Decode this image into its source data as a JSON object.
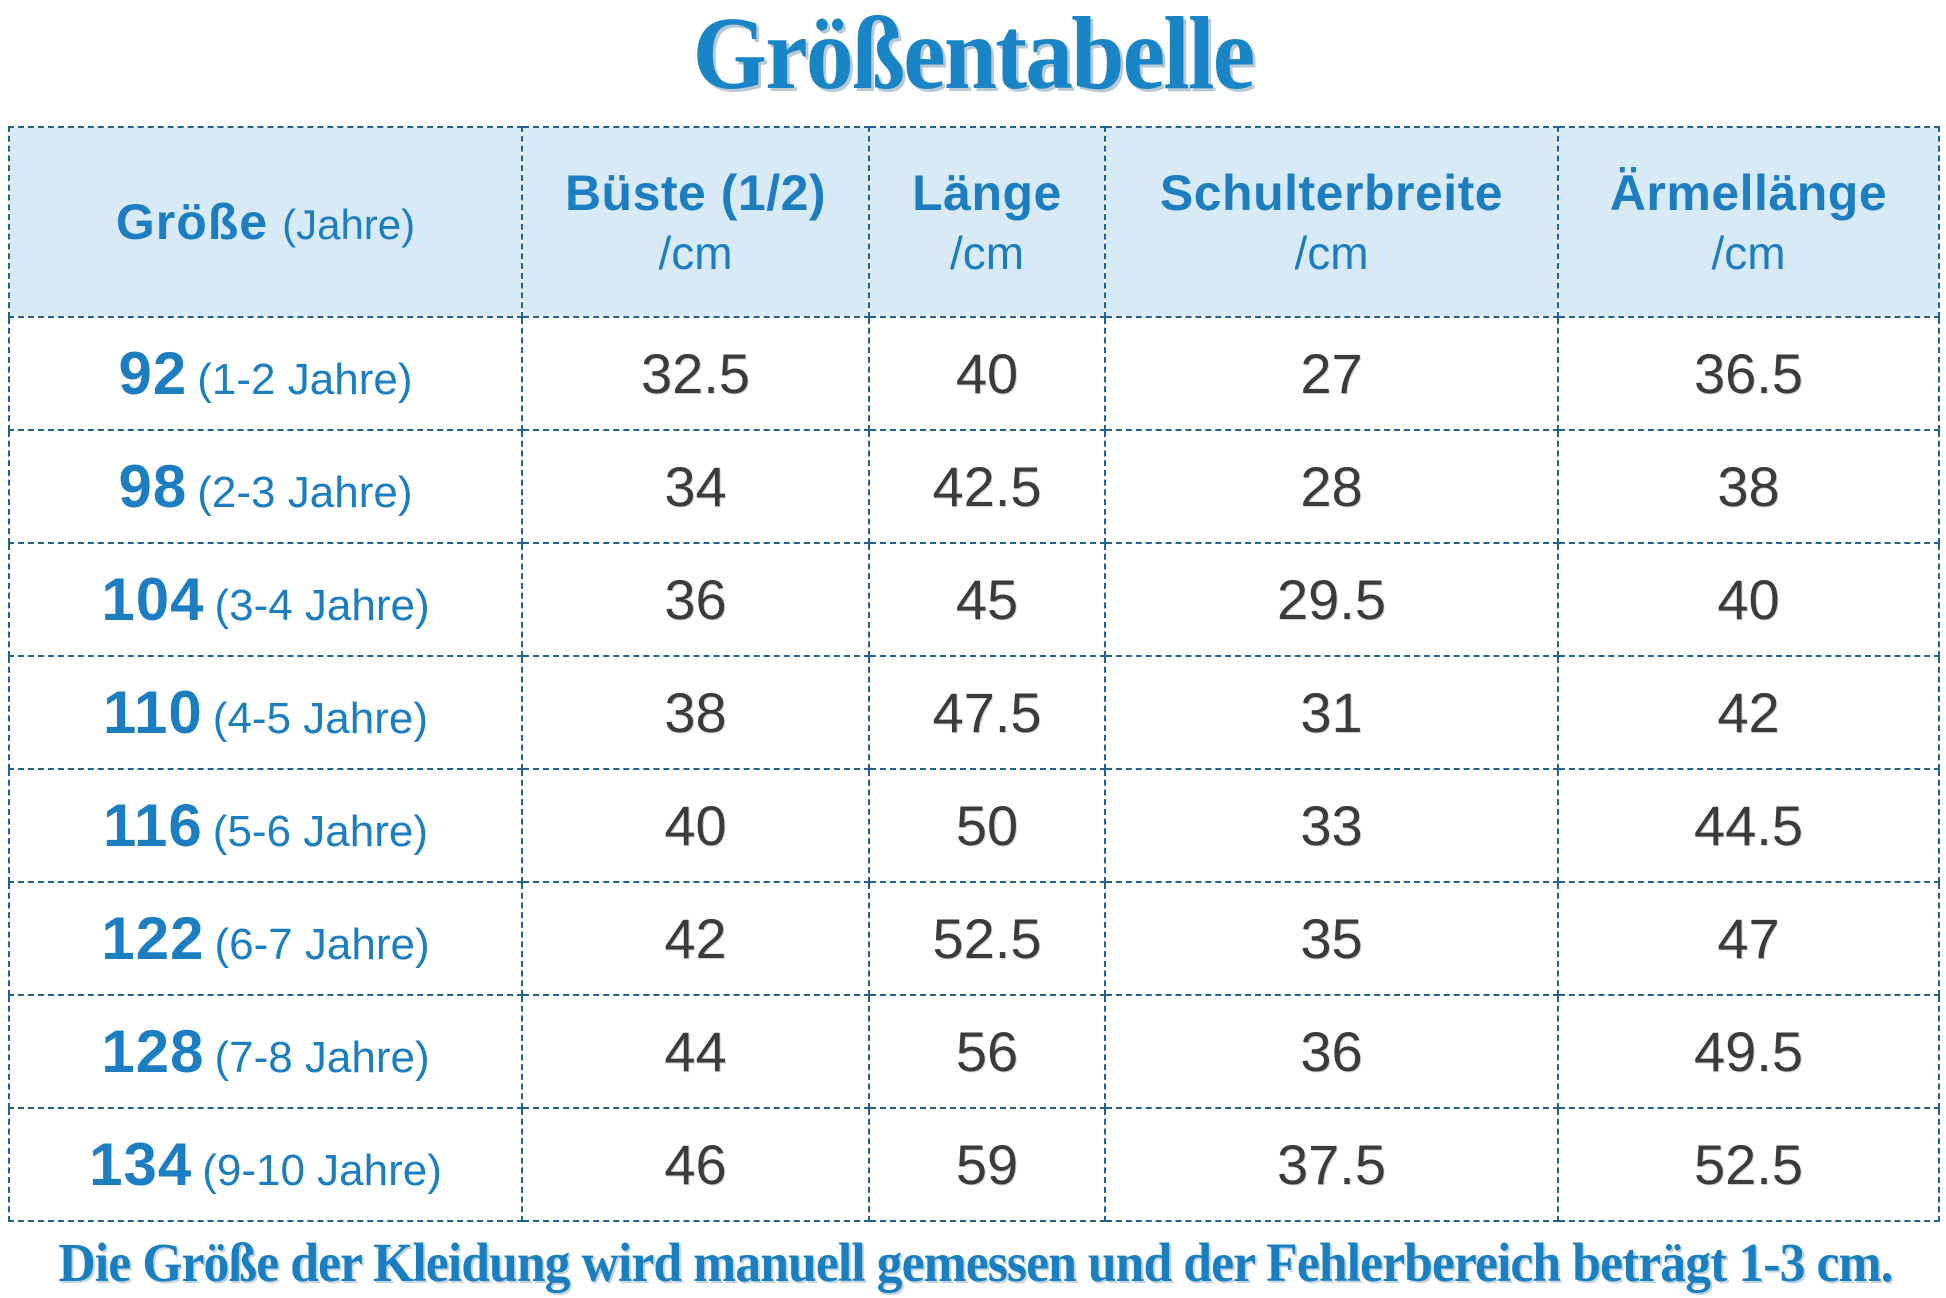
{
  "title": "Größentabelle",
  "footer_note": "Die Größe der Kleidung wird manuell gemessen und der Fehlerbereich beträgt 1-3 cm.",
  "colors": {
    "accent_blue": "#1a85c6",
    "header_bg": "#d9eaf7",
    "border_blue": "#23618e",
    "value_text": "#3b3b3b"
  },
  "table": {
    "size_header": {
      "label": "Größe",
      "sub_label": "(Jahre)"
    },
    "measure_headers": [
      {
        "label": "Büste (1/2)",
        "unit": "/cm"
      },
      {
        "label": "Länge",
        "unit": "/cm"
      },
      {
        "label": "Schulterbreite",
        "unit": "/cm"
      },
      {
        "label": "Ärmellänge",
        "unit": "/cm"
      }
    ],
    "rows": [
      {
        "size": "92",
        "age": "(1-2 Jahre)",
        "values": [
          "32.5",
          "40",
          "27",
          "36.5"
        ]
      },
      {
        "size": "98",
        "age": "(2-3 Jahre)",
        "values": [
          "34",
          "42.5",
          "28",
          "38"
        ]
      },
      {
        "size": "104",
        "age": "(3-4 Jahre)",
        "values": [
          "36",
          "45",
          "29.5",
          "40"
        ]
      },
      {
        "size": "110",
        "age": "(4-5 Jahre)",
        "values": [
          "38",
          "47.5",
          "31",
          "42"
        ]
      },
      {
        "size": "116",
        "age": "(5-6 Jahre)",
        "values": [
          "40",
          "50",
          "33",
          "44.5"
        ]
      },
      {
        "size": "122",
        "age": "(6-7 Jahre)",
        "values": [
          "42",
          "52.5",
          "35",
          "47"
        ]
      },
      {
        "size": "128",
        "age": "(7-8 Jahre)",
        "values": [
          "44",
          "56",
          "36",
          "49.5"
        ]
      },
      {
        "size": "134",
        "age": "(9-10 Jahre)",
        "values": [
          "46",
          "59",
          "37.5",
          "52.5"
        ]
      }
    ]
  },
  "chart_data": {
    "type": "table",
    "title": "Größentabelle",
    "columns": [
      "Größe (Jahre)",
      "Büste (1/2) /cm",
      "Länge /cm",
      "Schulterbreite /cm",
      "Ärmellänge /cm"
    ],
    "rows": [
      [
        "92 (1-2 Jahre)",
        32.5,
        40,
        27,
        36.5
      ],
      [
        "98 (2-3 Jahre)",
        34,
        42.5,
        28,
        38
      ],
      [
        "104 (3-4 Jahre)",
        36,
        45,
        29.5,
        40
      ],
      [
        "110 (4-5 Jahre)",
        38,
        47.5,
        31,
        42
      ],
      [
        "116 (5-6 Jahre)",
        40,
        50,
        33,
        44.5
      ],
      [
        "122 (6-7 Jahre)",
        42,
        52.5,
        35,
        47
      ],
      [
        "128 (7-8 Jahre)",
        44,
        56,
        36,
        49.5
      ],
      [
        "134 (9-10 Jahre)",
        46,
        59,
        37.5,
        52.5
      ]
    ],
    "footnote": "Die Größe der Kleidung wird manuell gemessen und der Fehlerbereich beträgt 1-3 cm."
  }
}
